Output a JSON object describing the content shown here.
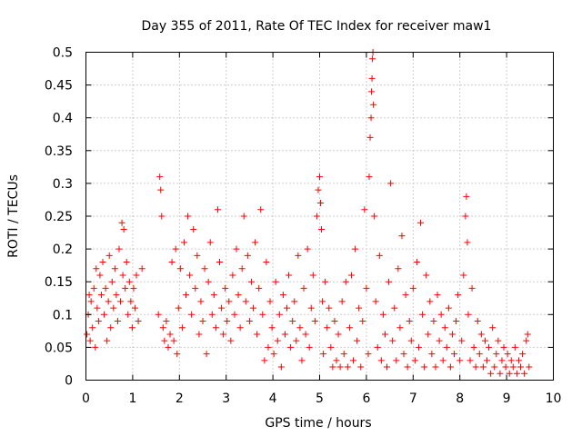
{
  "chart_data": {
    "type": "scatter",
    "title": "Day 355 of 2011, Rate Of TEC Index for receiver maw1",
    "xlabel": "GPS time / hours",
    "ylabel": "ROTI / TECUs",
    "xlim": [
      0,
      10
    ],
    "ylim": [
      0,
      0.5
    ],
    "xticks": [
      "0",
      "1",
      "2",
      "3",
      "4",
      "5",
      "6",
      "7",
      "8",
      "9",
      "10"
    ],
    "yticks": [
      "0",
      "0.05",
      "0.1",
      "0.15",
      "0.2",
      "0.25",
      "0.3",
      "0.35",
      "0.4",
      "0.45",
      "0.5"
    ],
    "grid": true,
    "marker": "plus",
    "series_color": "#ff0000",
    "series": [
      {
        "points": [
          [
            0.02,
            0.07
          ],
          [
            0.05,
            0.1
          ],
          [
            0.07,
            0.13
          ],
          [
            0.09,
            0.06
          ],
          [
            0.11,
            0.12
          ],
          [
            0.14,
            0.08
          ],
          [
            0.17,
            0.14
          ],
          [
            0.2,
            0.05
          ],
          [
            0.22,
            0.17
          ],
          [
            0.24,
            0.11
          ],
          [
            0.27,
            0.09
          ],
          [
            0.3,
            0.16
          ],
          [
            0.33,
            0.13
          ],
          [
            0.36,
            0.18
          ],
          [
            0.39,
            0.1
          ],
          [
            0.42,
            0.14
          ],
          [
            0.45,
            0.06
          ],
          [
            0.48,
            0.12
          ],
          [
            0.5,
            0.19
          ],
          [
            0.53,
            0.08
          ],
          [
            0.56,
            0.15
          ],
          [
            0.59,
            0.11
          ],
          [
            0.62,
            0.17
          ],
          [
            0.65,
            0.13
          ],
          [
            0.68,
            0.09
          ],
          [
            0.71,
            0.2
          ],
          [
            0.74,
            0.12
          ],
          [
            0.77,
            0.24
          ],
          [
            0.79,
            0.16
          ],
          [
            0.81,
            0.23
          ],
          [
            0.84,
            0.14
          ],
          [
            0.87,
            0.18
          ],
          [
            0.9,
            0.1
          ],
          [
            0.93,
            0.15
          ],
          [
            0.96,
            0.12
          ],
          [
            0.99,
            0.08
          ],
          [
            1.02,
            0.14
          ],
          [
            1.05,
            0.11
          ],
          [
            1.08,
            0.16
          ],
          [
            1.12,
            0.09
          ],
          [
            1.2,
            0.17
          ],
          [
            1.55,
            0.1
          ],
          [
            1.58,
            0.31
          ],
          [
            1.6,
            0.29
          ],
          [
            1.62,
            0.25
          ],
          [
            1.65,
            0.08
          ],
          [
            1.68,
            0.06
          ],
          [
            1.72,
            0.09
          ],
          [
            1.76,
            0.05
          ],
          [
            1.8,
            0.07
          ],
          [
            1.84,
            0.18
          ],
          [
            1.88,
            0.06
          ],
          [
            1.92,
            0.2
          ],
          [
            1.95,
            0.04
          ],
          [
            1.98,
            0.11
          ],
          [
            2.02,
            0.17
          ],
          [
            2.06,
            0.08
          ],
          [
            2.1,
            0.21
          ],
          [
            2.14,
            0.13
          ],
          [
            2.18,
            0.25
          ],
          [
            2.22,
            0.16
          ],
          [
            2.26,
            0.1
          ],
          [
            2.3,
            0.23
          ],
          [
            2.34,
            0.14
          ],
          [
            2.38,
            0.19
          ],
          [
            2.42,
            0.07
          ],
          [
            2.46,
            0.12
          ],
          [
            2.5,
            0.09
          ],
          [
            2.54,
            0.17
          ],
          [
            2.58,
            0.04
          ],
          [
            2.62,
            0.15
          ],
          [
            2.66,
            0.21
          ],
          [
            2.7,
            0.1
          ],
          [
            2.74,
            0.13
          ],
          [
            2.78,
            0.08
          ],
          [
            2.82,
            0.26
          ],
          [
            2.86,
            0.18
          ],
          [
            2.9,
            0.11
          ],
          [
            2.94,
            0.07
          ],
          [
            2.98,
            0.14
          ],
          [
            3.02,
            0.09
          ],
          [
            3.06,
            0.12
          ],
          [
            3.1,
            0.06
          ],
          [
            3.14,
            0.16
          ],
          [
            3.18,
            0.1
          ],
          [
            3.22,
            0.2
          ],
          [
            3.26,
            0.13
          ],
          [
            3.3,
            0.08
          ],
          [
            3.34,
            0.17
          ],
          [
            3.38,
            0.25
          ],
          [
            3.42,
            0.12
          ],
          [
            3.46,
            0.19
          ],
          [
            3.5,
            0.09
          ],
          [
            3.54,
            0.15
          ],
          [
            3.58,
            0.11
          ],
          [
            3.62,
            0.21
          ],
          [
            3.66,
            0.07
          ],
          [
            3.7,
            0.14
          ],
          [
            3.74,
            0.26
          ],
          [
            3.78,
            0.1
          ],
          [
            3.82,
            0.03
          ],
          [
            3.86,
            0.18
          ],
          [
            3.9,
            0.05
          ],
          [
            3.94,
            0.12
          ],
          [
            3.98,
            0.08
          ],
          [
            4.02,
            0.04
          ],
          [
            4.06,
            0.15
          ],
          [
            4.1,
            0.06
          ],
          [
            4.14,
            0.1
          ],
          [
            4.18,
            0.02
          ],
          [
            4.22,
            0.13
          ],
          [
            4.26,
            0.07
          ],
          [
            4.3,
            0.11
          ],
          [
            4.34,
            0.16
          ],
          [
            4.38,
            0.05
          ],
          [
            4.42,
            0.09
          ],
          [
            4.46,
            0.12
          ],
          [
            4.5,
            0.06
          ],
          [
            4.54,
            0.19
          ],
          [
            4.58,
            0.08
          ],
          [
            4.62,
            0.03
          ],
          [
            4.66,
            0.14
          ],
          [
            4.7,
            0.07
          ],
          [
            4.74,
            0.2
          ],
          [
            4.78,
            0.05
          ],
          [
            4.82,
            0.11
          ],
          [
            4.86,
            0.16
          ],
          [
            4.9,
            0.09
          ],
          [
            4.94,
            0.25
          ],
          [
            4.97,
            0.29
          ],
          [
            5.0,
            0.31
          ],
          [
            5.02,
            0.27
          ],
          [
            5.04,
            0.23
          ],
          [
            5.06,
            0.12
          ],
          [
            5.08,
            0.04
          ],
          [
            5.12,
            0.15
          ],
          [
            5.16,
            0.08
          ],
          [
            5.2,
            0.11
          ],
          [
            5.24,
            0.05
          ],
          [
            5.28,
            0.02
          ],
          [
            5.32,
            0.09
          ],
          [
            5.36,
            0.03
          ],
          [
            5.4,
            0.07
          ],
          [
            5.44,
            0.02
          ],
          [
            5.48,
            0.12
          ],
          [
            5.52,
            0.04
          ],
          [
            5.56,
            0.15
          ],
          [
            5.6,
            0.02
          ],
          [
            5.64,
            0.08
          ],
          [
            5.68,
            0.16
          ],
          [
            5.72,
            0.03
          ],
          [
            5.76,
            0.2
          ],
          [
            5.8,
            0.06
          ],
          [
            5.84,
            0.11
          ],
          [
            5.88,
            0.02
          ],
          [
            5.92,
            0.09
          ],
          [
            5.96,
            0.26
          ],
          [
            6.0,
            0.14
          ],
          [
            6.04,
            0.04
          ],
          [
            6.06,
            0.31
          ],
          [
            6.08,
            0.37
          ],
          [
            6.1,
            0.4
          ],
          [
            6.11,
            0.44
          ],
          [
            6.12,
            0.46
          ],
          [
            6.13,
            0.49
          ],
          [
            6.14,
            0.5
          ],
          [
            6.15,
            0.42
          ],
          [
            6.17,
            0.25
          ],
          [
            6.2,
            0.12
          ],
          [
            6.24,
            0.05
          ],
          [
            6.28,
            0.19
          ],
          [
            6.32,
            0.03
          ],
          [
            6.36,
            0.1
          ],
          [
            6.4,
            0.07
          ],
          [
            6.44,
            0.02
          ],
          [
            6.48,
            0.15
          ],
          [
            6.52,
            0.3
          ],
          [
            6.56,
            0.06
          ],
          [
            6.6,
            0.11
          ],
          [
            6.64,
            0.03
          ],
          [
            6.68,
            0.17
          ],
          [
            6.72,
            0.08
          ],
          [
            6.76,
            0.22
          ],
          [
            6.8,
            0.04
          ],
          [
            6.84,
            0.13
          ],
          [
            6.88,
            0.02
          ],
          [
            6.92,
            0.09
          ],
          [
            6.96,
            0.06
          ],
          [
            7.0,
            0.14
          ],
          [
            7.04,
            0.03
          ],
          [
            7.08,
            0.18
          ],
          [
            7.12,
            0.05
          ],
          [
            7.16,
            0.24
          ],
          [
            7.2,
            0.1
          ],
          [
            7.24,
            0.02
          ],
          [
            7.28,
            0.16
          ],
          [
            7.32,
            0.07
          ],
          [
            7.36,
            0.12
          ],
          [
            7.4,
            0.04
          ],
          [
            7.44,
            0.09
          ],
          [
            7.48,
            0.02
          ],
          [
            7.52,
            0.13
          ],
          [
            7.56,
            0.06
          ],
          [
            7.6,
            0.1
          ],
          [
            7.64,
            0.03
          ],
          [
            7.68,
            0.08
          ],
          [
            7.72,
            0.05
          ],
          [
            7.76,
            0.11
          ],
          [
            7.8,
            0.02
          ],
          [
            7.84,
            0.07
          ],
          [
            7.88,
            0.04
          ],
          [
            7.92,
            0.09
          ],
          [
            7.96,
            0.13
          ],
          [
            8.0,
            0.03
          ],
          [
            8.04,
            0.06
          ],
          [
            8.08,
            0.16
          ],
          [
            8.12,
            0.25
          ],
          [
            8.14,
            0.28
          ],
          [
            8.16,
            0.21
          ],
          [
            8.18,
            0.1
          ],
          [
            8.22,
            0.03
          ],
          [
            8.26,
            0.14
          ],
          [
            8.3,
            0.05
          ],
          [
            8.34,
            0.02
          ],
          [
            8.38,
            0.09
          ],
          [
            8.42,
            0.04
          ],
          [
            8.46,
            0.07
          ],
          [
            8.5,
            0.02
          ],
          [
            8.54,
            0.06
          ],
          [
            8.58,
            0.03
          ],
          [
            8.62,
            0.05
          ],
          [
            8.66,
            0.01
          ],
          [
            8.7,
            0.08
          ],
          [
            8.74,
            0.02
          ],
          [
            8.78,
            0.04
          ],
          [
            8.82,
            0.06
          ],
          [
            8.86,
            0.01
          ],
          [
            8.9,
            0.03
          ],
          [
            8.94,
            0.05
          ],
          [
            8.98,
            0.02
          ],
          [
            9.02,
            0.04
          ],
          [
            9.06,
            0.01
          ],
          [
            9.1,
            0.03
          ],
          [
            9.14,
            0.02
          ],
          [
            9.18,
            0.05
          ],
          [
            9.22,
            0.01
          ],
          [
            9.26,
            0.03
          ],
          [
            9.3,
            0.02
          ],
          [
            9.34,
            0.04
          ],
          [
            9.38,
            0.01
          ],
          [
            9.42,
            0.06
          ],
          [
            9.45,
            0.07
          ],
          [
            9.48,
            0.02
          ]
        ]
      }
    ]
  }
}
